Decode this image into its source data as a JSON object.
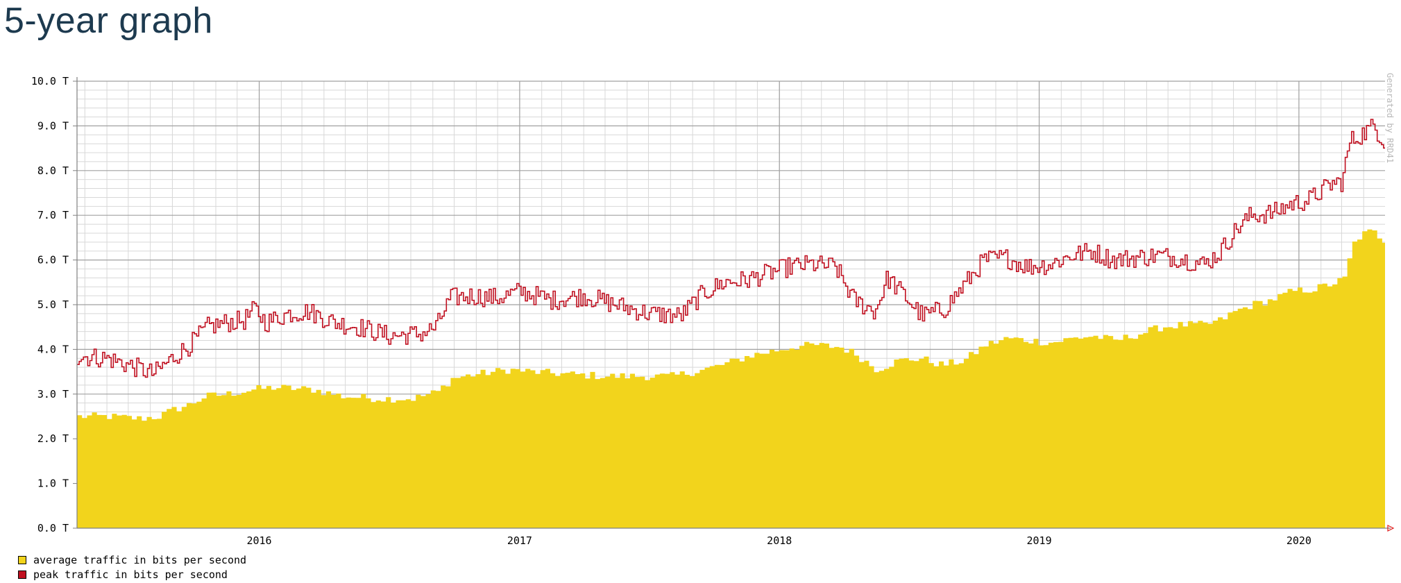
{
  "page": {
    "title": "5-year graph"
  },
  "chart_data": {
    "type": "area",
    "xlabel": "",
    "ylabel": "",
    "grid": true,
    "legend_placement": "bottom-left",
    "watermark": "Generated by RRD41",
    "x_range": [
      "2015-04-20",
      "2020-05-01"
    ],
    "ylim": [
      0,
      10
    ],
    "y_ticks": [
      "0.0 T",
      "1.0 T",
      "2.0 T",
      "3.0 T",
      "4.0 T",
      "5.0 T",
      "6.0 T",
      "7.0 T",
      "8.0 T",
      "9.0 T",
      "10.0 T"
    ],
    "x_ticks": [
      {
        "date": "2016-01-01",
        "label": "2016"
      },
      {
        "date": "2017-01-01",
        "label": "2017"
      },
      {
        "date": "2018-01-01",
        "label": "2018"
      },
      {
        "date": "2019-01-01",
        "label": "2019"
      },
      {
        "date": "2020-01-01",
        "label": "2020"
      }
    ],
    "colors": {
      "average": "#f2d41c",
      "peak": "#c01020",
      "grid_major": "#a0a0a0",
      "grid_minor": "#d8d8d8",
      "axis": "#808080",
      "arrow": "#e02020"
    },
    "series": [
      {
        "name": "average traffic in bits per second",
        "color": "#f2d41c",
        "style": "area",
        "points": [
          [
            "2015-04-20",
            2.5
          ],
          [
            "2015-06-01",
            2.5
          ],
          [
            "2015-07-15",
            2.45
          ],
          [
            "2015-08-10",
            2.5
          ],
          [
            "2015-08-31",
            2.65
          ],
          [
            "2015-09-20",
            2.75
          ],
          [
            "2015-10-15",
            2.95
          ],
          [
            "2015-11-15",
            3.0
          ],
          [
            "2015-12-20",
            3.1
          ],
          [
            "2016-01-20",
            3.15
          ],
          [
            "2016-03-15",
            3.1
          ],
          [
            "2016-04-25",
            2.95
          ],
          [
            "2016-06-15",
            2.9
          ],
          [
            "2016-08-01",
            2.9
          ],
          [
            "2016-09-05",
            3.05
          ],
          [
            "2016-09-25",
            3.35
          ],
          [
            "2016-11-01",
            3.45
          ],
          [
            "2016-12-15",
            3.55
          ],
          [
            "2017-01-15",
            3.5
          ],
          [
            "2017-03-01",
            3.45
          ],
          [
            "2017-05-01",
            3.4
          ],
          [
            "2017-06-15",
            3.4
          ],
          [
            "2017-08-01",
            3.4
          ],
          [
            "2017-09-15",
            3.55
          ],
          [
            "2017-10-20",
            3.7
          ],
          [
            "2017-11-15",
            3.85
          ],
          [
            "2017-12-15",
            3.95
          ],
          [
            "2018-01-15",
            4.05
          ],
          [
            "2018-02-15",
            4.1
          ],
          [
            "2018-03-25",
            4.05
          ],
          [
            "2018-04-15",
            3.9
          ],
          [
            "2018-05-15",
            3.55
          ],
          [
            "2018-06-15",
            3.75
          ],
          [
            "2018-07-15",
            3.8
          ],
          [
            "2018-08-15",
            3.65
          ],
          [
            "2018-09-15",
            3.75
          ],
          [
            "2018-10-15",
            4.1
          ],
          [
            "2018-11-15",
            4.25
          ],
          [
            "2018-12-15",
            4.2
          ],
          [
            "2019-01-15",
            4.15
          ],
          [
            "2019-02-15",
            4.25
          ],
          [
            "2019-03-15",
            4.3
          ],
          [
            "2019-04-15",
            4.2
          ],
          [
            "2019-05-20",
            4.35
          ],
          [
            "2019-06-20",
            4.5
          ],
          [
            "2019-07-20",
            4.55
          ],
          [
            "2019-08-20",
            4.55
          ],
          [
            "2019-09-10",
            4.65
          ],
          [
            "2019-10-01",
            4.85
          ],
          [
            "2019-10-25",
            5.0
          ],
          [
            "2019-11-20",
            5.1
          ],
          [
            "2019-12-20",
            5.3
          ],
          [
            "2020-01-20",
            5.35
          ],
          [
            "2020-02-20",
            5.5
          ],
          [
            "2020-03-05",
            5.6
          ],
          [
            "2020-03-12",
            6.3
          ],
          [
            "2020-03-25",
            6.55
          ],
          [
            "2020-04-10",
            6.65
          ],
          [
            "2020-05-01",
            6.4
          ]
        ]
      },
      {
        "name": "peak traffic in bits per second",
        "color": "#c01020",
        "style": "line",
        "points": [
          [
            "2015-04-20",
            3.85
          ],
          [
            "2015-06-01",
            3.8
          ],
          [
            "2015-07-10",
            3.6
          ],
          [
            "2015-08-05",
            3.45
          ],
          [
            "2015-08-31",
            3.8
          ],
          [
            "2015-09-25",
            4.1
          ],
          [
            "2015-10-20",
            4.5
          ],
          [
            "2015-11-15",
            4.6
          ],
          [
            "2015-12-10",
            4.65
          ],
          [
            "2015-12-25",
            4.9
          ],
          [
            "2016-01-10",
            4.6
          ],
          [
            "2016-02-10",
            4.8
          ],
          [
            "2016-03-10",
            4.85
          ],
          [
            "2016-04-15",
            4.6
          ],
          [
            "2016-05-20",
            4.5
          ],
          [
            "2016-07-01",
            4.3
          ],
          [
            "2016-08-15",
            4.35
          ],
          [
            "2016-09-05",
            4.5
          ],
          [
            "2016-09-25",
            5.15
          ],
          [
            "2016-10-25",
            5.2
          ],
          [
            "2016-12-01",
            5.15
          ],
          [
            "2017-01-01",
            5.3
          ],
          [
            "2017-02-15",
            5.1
          ],
          [
            "2017-04-01",
            5.2
          ],
          [
            "2017-05-15",
            5.0
          ],
          [
            "2017-07-01",
            4.8
          ],
          [
            "2017-08-15",
            4.75
          ],
          [
            "2017-09-15",
            5.25
          ],
          [
            "2017-10-15",
            5.5
          ],
          [
            "2017-11-15",
            5.55
          ],
          [
            "2017-12-15",
            5.7
          ],
          [
            "2018-01-15",
            5.85
          ],
          [
            "2018-02-15",
            5.9
          ],
          [
            "2018-03-20",
            5.85
          ],
          [
            "2018-04-15",
            5.1
          ],
          [
            "2018-05-15",
            4.85
          ],
          [
            "2018-06-01",
            5.6
          ],
          [
            "2018-06-25",
            5.2
          ],
          [
            "2018-07-20",
            4.75
          ],
          [
            "2018-08-20",
            4.9
          ],
          [
            "2018-09-15",
            5.4
          ],
          [
            "2018-10-15",
            6.0
          ],
          [
            "2018-11-15",
            6.05
          ],
          [
            "2018-12-15",
            5.85
          ],
          [
            "2019-01-15",
            5.9
          ],
          [
            "2019-02-15",
            6.1
          ],
          [
            "2019-03-15",
            6.2
          ],
          [
            "2019-04-15",
            6.0
          ],
          [
            "2019-05-15",
            6.05
          ],
          [
            "2019-06-15",
            6.1
          ],
          [
            "2019-07-15",
            6.05
          ],
          [
            "2019-08-20",
            5.9
          ],
          [
            "2019-09-10",
            6.15
          ],
          [
            "2019-10-05",
            6.7
          ],
          [
            "2019-10-25",
            7.0
          ],
          [
            "2019-11-25",
            7.05
          ],
          [
            "2019-12-20",
            7.25
          ],
          [
            "2020-01-15",
            7.35
          ],
          [
            "2020-02-15",
            7.7
          ],
          [
            "2020-03-01",
            7.75
          ],
          [
            "2020-03-12",
            8.65
          ],
          [
            "2020-04-01",
            8.85
          ],
          [
            "2020-04-15",
            9.0
          ],
          [
            "2020-05-01",
            8.6
          ]
        ]
      }
    ]
  },
  "legend": [
    {
      "label": "average traffic in bits per second",
      "color": "#f2d41c"
    },
    {
      "label": "peak traffic in bits per second",
      "color": "#c01020"
    }
  ]
}
